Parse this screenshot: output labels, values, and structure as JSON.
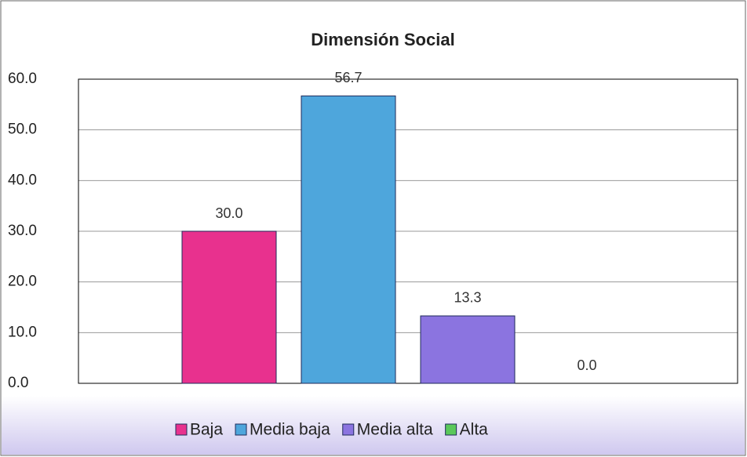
{
  "chart_data": {
    "type": "bar",
    "title": "Dimensión Social",
    "categories": [
      null
    ],
    "series": [
      {
        "name": "Baja",
        "color": "#e8318e",
        "values": [
          30.0
        ],
        "value_labels": [
          "30.0"
        ]
      },
      {
        "name": "Media baja",
        "color": "#4ea6dc",
        "values": [
          56.7
        ],
        "value_labels": [
          "56.7"
        ]
      },
      {
        "name": "Media alta",
        "color": "#8b74e0",
        "values": [
          13.3
        ],
        "value_labels": [
          "13.3"
        ]
      },
      {
        "name": "Alta",
        "color": "#5ac85a",
        "values": [
          0.0
        ],
        "value_labels": [
          "0.0"
        ]
      }
    ],
    "ylim": [
      0,
      60
    ],
    "yticks": [
      {
        "value": 0,
        "label": "0.0"
      },
      {
        "value": 10,
        "label": "10.0"
      },
      {
        "value": 20,
        "label": "20.0"
      },
      {
        "value": 30,
        "label": "30.0"
      },
      {
        "value": 40,
        "label": "40.0"
      },
      {
        "value": 50,
        "label": "50.0"
      },
      {
        "value": 60,
        "label": "60.0"
      }
    ],
    "grid": true,
    "legend": "bottom"
  }
}
